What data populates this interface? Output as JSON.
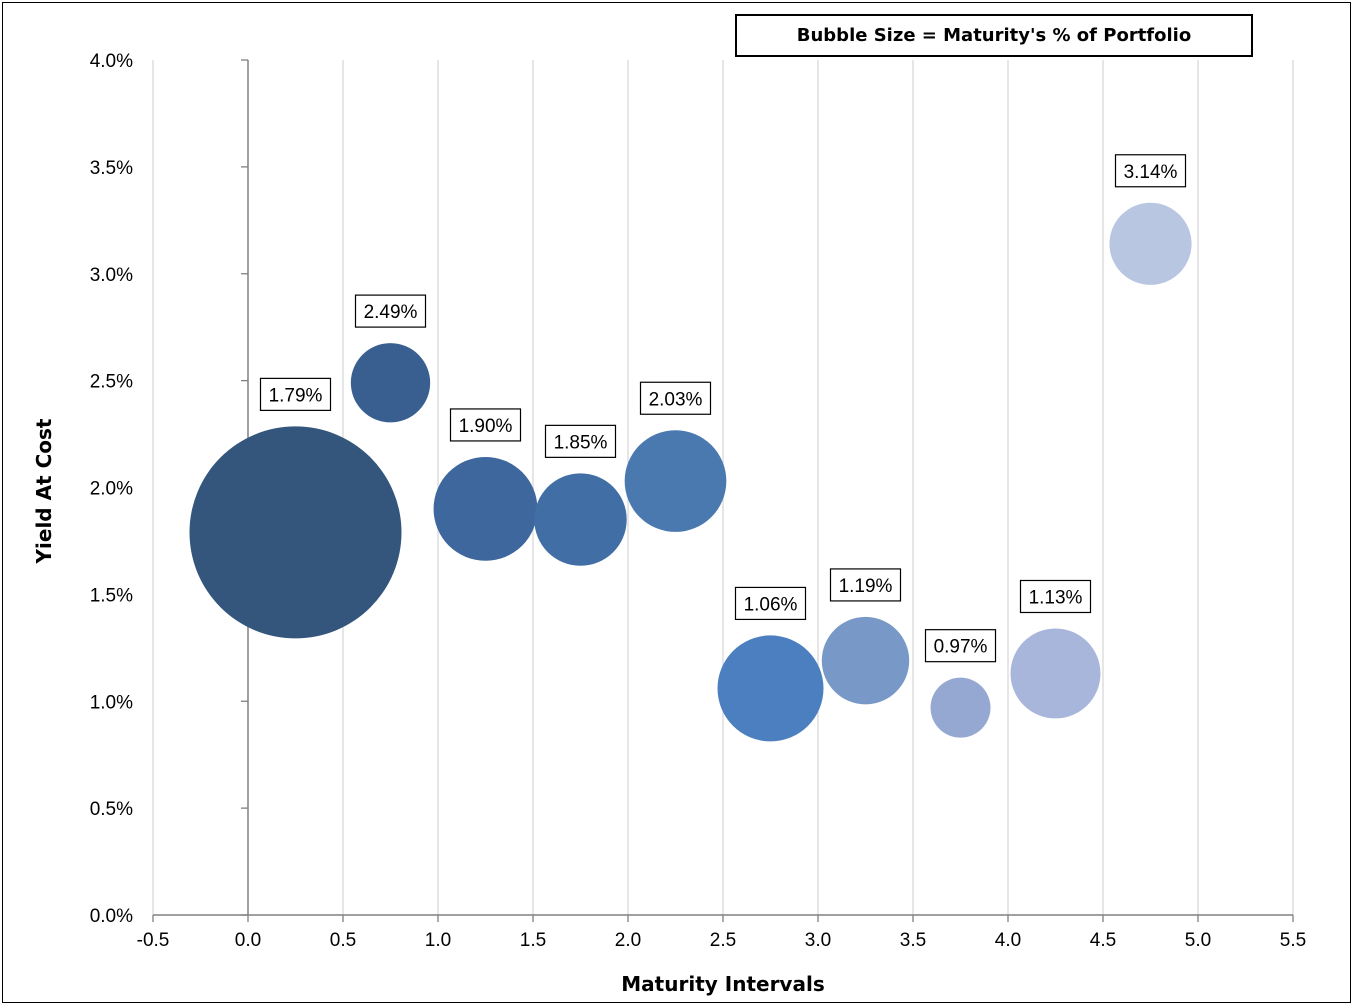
{
  "chart_data": {
    "type": "bubble",
    "annotation": "Bubble Size = Maturity's % of Portfolio",
    "xlabel": "Maturity Intervals",
    "ylabel": "Yield At Cost",
    "xlim": [
      -0.5,
      5.5
    ],
    "ylim": [
      0.0,
      0.04
    ],
    "x_ticks": [
      "-0.5",
      "0.0",
      "0.5",
      "1.0",
      "1.5",
      "2.0",
      "2.5",
      "3.0",
      "3.5",
      "4.0",
      "4.5",
      "5.0",
      "5.5"
    ],
    "y_ticks": [
      "0.0%",
      "0.5%",
      "1.0%",
      "1.5%",
      "2.0%",
      "2.5%",
      "3.0%",
      "3.5%",
      "4.0%"
    ],
    "grid": "vertical",
    "points": [
      {
        "x": 0.25,
        "y": 0.0179,
        "size": 100,
        "label": "1.79%",
        "color": "#34567c"
      },
      {
        "x": 0.75,
        "y": 0.0249,
        "size": 14,
        "label": "2.49%",
        "color": "#395f90"
      },
      {
        "x": 1.25,
        "y": 0.019,
        "size": 24,
        "label": "1.90%",
        "color": "#3d679d"
      },
      {
        "x": 1.75,
        "y": 0.0185,
        "size": 19,
        "label": "1.85%",
        "color": "#416ea5"
      },
      {
        "x": 2.25,
        "y": 0.0203,
        "size": 23,
        "label": "2.03%",
        "color": "#4a79b0"
      },
      {
        "x": 2.75,
        "y": 0.0106,
        "size": 25,
        "label": "1.06%",
        "color": "#4c7fbf"
      },
      {
        "x": 3.25,
        "y": 0.0119,
        "size": 17,
        "label": "1.19%",
        "color": "#7898c7"
      },
      {
        "x": 3.75,
        "y": 0.0097,
        "size": 8,
        "label": "0.97%",
        "color": "#94a8d2"
      },
      {
        "x": 4.25,
        "y": 0.0113,
        "size": 18,
        "label": "1.13%",
        "color": "#a7b6da"
      },
      {
        "x": 4.75,
        "y": 0.0314,
        "size": 15,
        "label": "3.14%",
        "color": "#b9c6e2"
      }
    ]
  }
}
